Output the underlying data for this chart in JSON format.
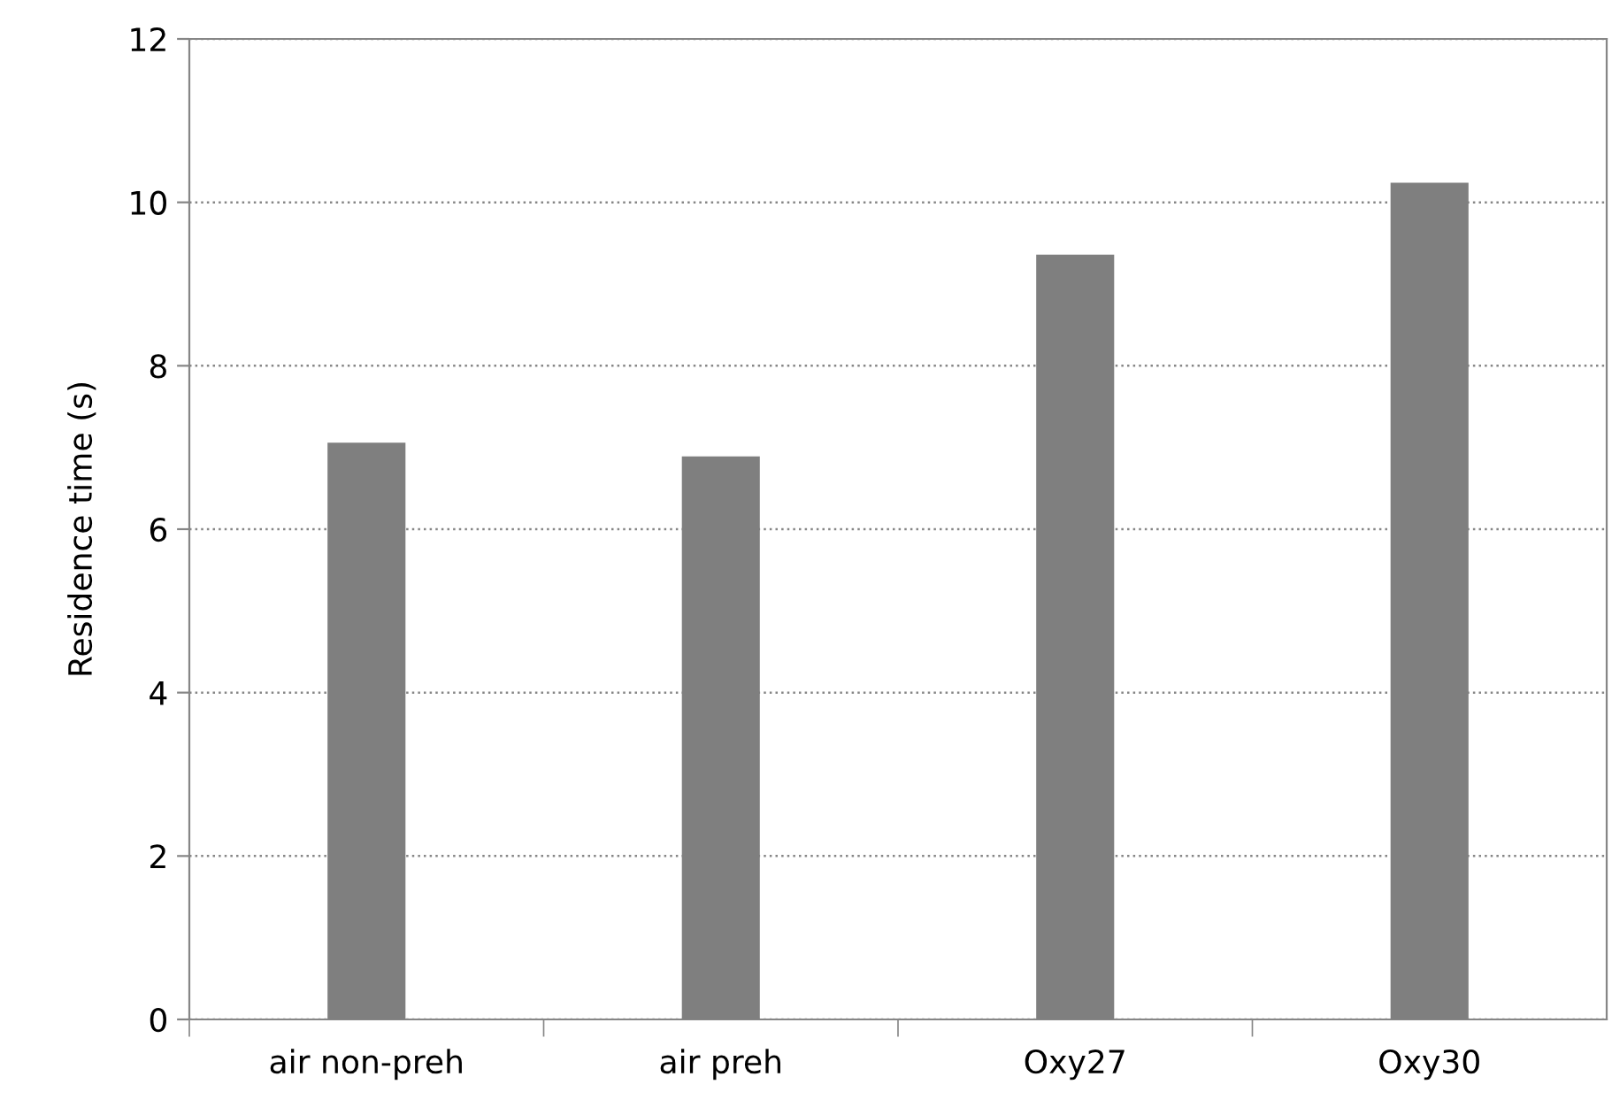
{
  "chart_data": {
    "type": "bar",
    "ylabel": "Residence time (s)",
    "categories": [
      "air non-preh",
      "air preh",
      "Oxy27",
      "Oxy30"
    ],
    "values": [
      7.06,
      6.89,
      9.36,
      10.24
    ],
    "color": "#7f7f7f",
    "ylim": [
      0,
      12
    ],
    "yticks": [
      0,
      2,
      4,
      6,
      8,
      10,
      12
    ],
    "grid": "y"
  }
}
